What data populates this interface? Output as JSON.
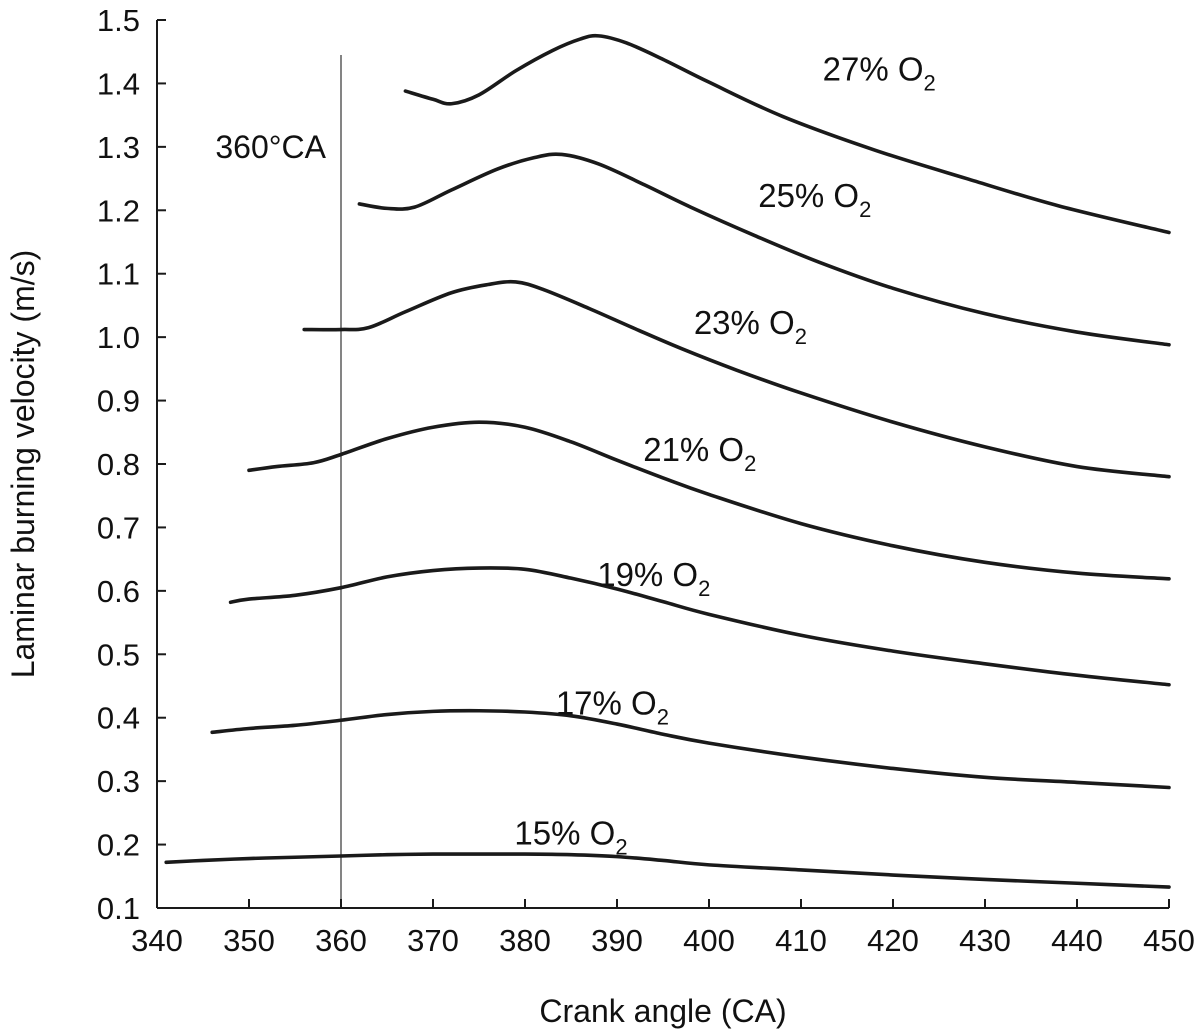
{
  "chart_data": {
    "type": "line",
    "title": "",
    "xlabel": "Crank angle (CA)",
    "ylabel": "Laminar burning velocity (m/s)",
    "xlim": [
      340,
      450
    ],
    "ylim": [
      0.1,
      1.5
    ],
    "x_ticks": [
      340,
      350,
      360,
      370,
      380,
      390,
      400,
      410,
      420,
      430,
      440,
      450
    ],
    "y_ticks": [
      0.1,
      0.2,
      0.3,
      0.4,
      0.5,
      0.6,
      0.7,
      0.8,
      0.9,
      1.0,
      1.1,
      1.2,
      1.3,
      1.4,
      1.5
    ],
    "y_tick_labels": [
      "0.1",
      "0.2",
      "0.3",
      "0.4",
      "0.5",
      "0.6",
      "0.7",
      "0.8",
      "0.9",
      "1.0",
      "1.1",
      "1.2",
      "1.3",
      "1.4",
      "1.5"
    ],
    "grid": false,
    "legend": "none",
    "line_color": "#1a1a1a",
    "reference_line": {
      "x": 360,
      "label": "360°CA"
    },
    "series": [
      {
        "name": "15% O2",
        "label_main": "15% O",
        "label_sub": "2",
        "points": [
          [
            341,
            0.172
          ],
          [
            345,
            0.175
          ],
          [
            350,
            0.178
          ],
          [
            355,
            0.18
          ],
          [
            360,
            0.182
          ],
          [
            365,
            0.184
          ],
          [
            370,
            0.185
          ],
          [
            375,
            0.185
          ],
          [
            380,
            0.185
          ],
          [
            385,
            0.184
          ],
          [
            390,
            0.181
          ],
          [
            395,
            0.175
          ],
          [
            400,
            0.168
          ],
          [
            410,
            0.16
          ],
          [
            420,
            0.152
          ],
          [
            430,
            0.145
          ],
          [
            440,
            0.139
          ],
          [
            450,
            0.133
          ]
        ]
      },
      {
        "name": "17% O2",
        "label_main": "17% O",
        "label_sub": "2",
        "points": [
          [
            346,
            0.377
          ],
          [
            350,
            0.383
          ],
          [
            355,
            0.388
          ],
          [
            360,
            0.396
          ],
          [
            365,
            0.405
          ],
          [
            370,
            0.41
          ],
          [
            375,
            0.411
          ],
          [
            380,
            0.409
          ],
          [
            385,
            0.403
          ],
          [
            390,
            0.39
          ],
          [
            395,
            0.374
          ],
          [
            400,
            0.36
          ],
          [
            410,
            0.338
          ],
          [
            420,
            0.32
          ],
          [
            430,
            0.306
          ],
          [
            440,
            0.298
          ],
          [
            450,
            0.29
          ]
        ]
      },
      {
        "name": "19% O2",
        "label_main": "19% O",
        "label_sub": "2",
        "points": [
          [
            348,
            0.582
          ],
          [
            350,
            0.587
          ],
          [
            355,
            0.593
          ],
          [
            360,
            0.605
          ],
          [
            365,
            0.622
          ],
          [
            370,
            0.632
          ],
          [
            375,
            0.636
          ],
          [
            380,
            0.634
          ],
          [
            385,
            0.62
          ],
          [
            390,
            0.603
          ],
          [
            395,
            0.583
          ],
          [
            400,
            0.563
          ],
          [
            410,
            0.53
          ],
          [
            420,
            0.505
          ],
          [
            430,
            0.485
          ],
          [
            440,
            0.467
          ],
          [
            450,
            0.452
          ]
        ]
      },
      {
        "name": "21% O2",
        "label_main": "21% O",
        "label_sub": "2",
        "points": [
          [
            350,
            0.79
          ],
          [
            353,
            0.796
          ],
          [
            357,
            0.802
          ],
          [
            360,
            0.815
          ],
          [
            365,
            0.84
          ],
          [
            370,
            0.858
          ],
          [
            375,
            0.866
          ],
          [
            380,
            0.858
          ],
          [
            385,
            0.835
          ],
          [
            390,
            0.806
          ],
          [
            395,
            0.778
          ],
          [
            400,
            0.752
          ],
          [
            410,
            0.706
          ],
          [
            420,
            0.671
          ],
          [
            430,
            0.645
          ],
          [
            440,
            0.628
          ],
          [
            450,
            0.619
          ]
        ]
      },
      {
        "name": "23% O2",
        "label_main": "23% O",
        "label_sub": "2",
        "points": [
          [
            356,
            1.012
          ],
          [
            360,
            1.012
          ],
          [
            363,
            1.015
          ],
          [
            367,
            1.04
          ],
          [
            372,
            1.07
          ],
          [
            376,
            1.083
          ],
          [
            379,
            1.087
          ],
          [
            382,
            1.075
          ],
          [
            387,
            1.045
          ],
          [
            392,
            1.013
          ],
          [
            397,
            0.982
          ],
          [
            403,
            0.948
          ],
          [
            410,
            0.912
          ],
          [
            420,
            0.866
          ],
          [
            430,
            0.827
          ],
          [
            440,
            0.796
          ],
          [
            450,
            0.78
          ]
        ]
      },
      {
        "name": "25% O2",
        "label_main": "25% O",
        "label_sub": "2",
        "points": [
          [
            362,
            1.21
          ],
          [
            365,
            1.203
          ],
          [
            368,
            1.205
          ],
          [
            372,
            1.232
          ],
          [
            377,
            1.265
          ],
          [
            381,
            1.283
          ],
          [
            384,
            1.288
          ],
          [
            388,
            1.273
          ],
          [
            393,
            1.24
          ],
          [
            398,
            1.205
          ],
          [
            405,
            1.16
          ],
          [
            412,
            1.118
          ],
          [
            420,
            1.077
          ],
          [
            430,
            1.037
          ],
          [
            440,
            1.008
          ],
          [
            450,
            0.988
          ]
        ]
      },
      {
        "name": "27% O2",
        "label_main": "27% O",
        "label_sub": "2",
        "points": [
          [
            367,
            1.388
          ],
          [
            370,
            1.375
          ],
          [
            372,
            1.368
          ],
          [
            375,
            1.382
          ],
          [
            379,
            1.42
          ],
          [
            383,
            1.452
          ],
          [
            386,
            1.47
          ],
          [
            388,
            1.475
          ],
          [
            391,
            1.464
          ],
          [
            395,
            1.438
          ],
          [
            400,
            1.402
          ],
          [
            408,
            1.348
          ],
          [
            418,
            1.295
          ],
          [
            428,
            1.25
          ],
          [
            438,
            1.207
          ],
          [
            450,
            1.165
          ]
        ]
      }
    ],
    "series_label_anchor": [
      [
        385.0,
        0.2
      ],
      [
        389.5,
        0.405
      ],
      [
        394.0,
        0.608
      ],
      [
        399.0,
        0.805
      ],
      [
        404.5,
        1.005
      ],
      [
        411.5,
        1.205
      ],
      [
        418.5,
        1.405
      ]
    ]
  }
}
